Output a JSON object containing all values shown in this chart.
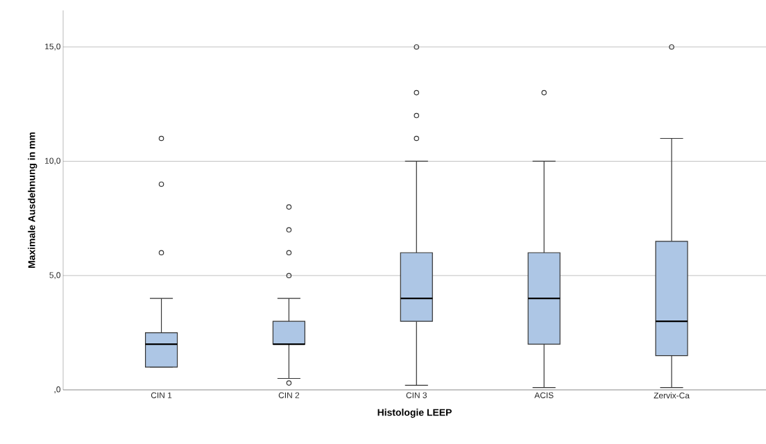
{
  "chart_data": {
    "type": "box",
    "xlabel": "Histologie LEEP",
    "ylabel": "Maximale Ausdehnung in mm",
    "categories": [
      "CIN 1",
      "CIN 2",
      "CIN 3",
      "ACIS",
      "Zervix-Ca"
    ],
    "color": "#adc6e5",
    "marker": "circle",
    "grid": "y",
    "ylim": [
      0,
      16.6
    ],
    "yticks": [
      {
        "value": 0,
        "label": ",0"
      },
      {
        "value": 5,
        "label": "5,0"
      },
      {
        "value": 10,
        "label": "10,0"
      },
      {
        "value": 15,
        "label": "15,0"
      }
    ],
    "boxes": [
      {
        "low": 1,
        "q1": 1,
        "median": 2,
        "q3": 2.5,
        "high": 4,
        "outliers": [
          6,
          9,
          11
        ]
      },
      {
        "low": 0.5,
        "q1": 2,
        "median": 2,
        "q3": 3,
        "high": 4,
        "outliers": [
          0.3,
          5,
          6,
          7,
          8
        ]
      },
      {
        "low": 0.2,
        "q1": 3,
        "median": 4,
        "q3": 6,
        "high": 10,
        "outliers": [
          11,
          12,
          13,
          15
        ]
      },
      {
        "low": 0.1,
        "q1": 2,
        "median": 4,
        "q3": 6,
        "high": 10,
        "outliers": [
          13
        ]
      },
      {
        "low": 0.1,
        "q1": 1.5,
        "median": 3,
        "q3": 6.5,
        "high": 11,
        "outliers": [
          15
        ]
      }
    ]
  }
}
